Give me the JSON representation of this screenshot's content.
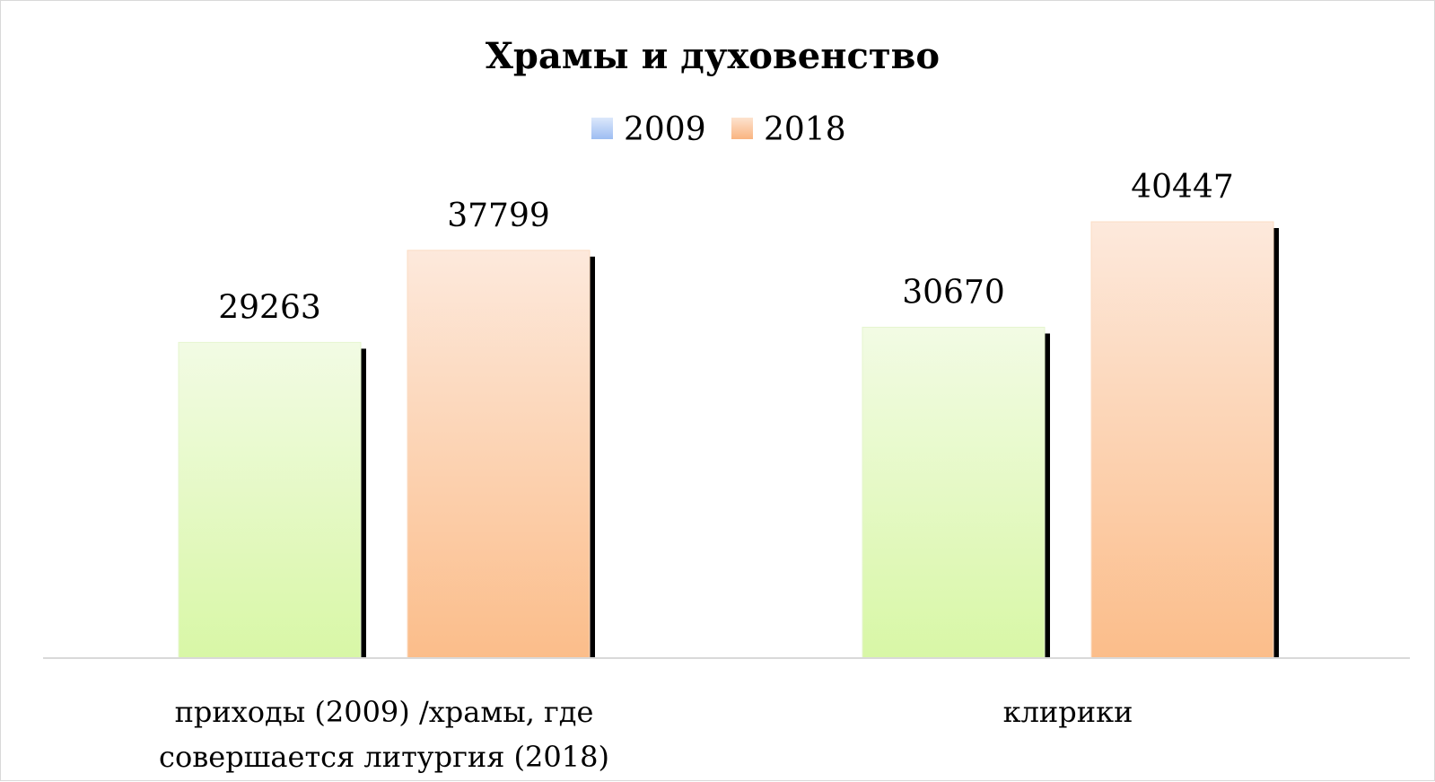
{
  "chart_data": {
    "type": "bar",
    "title": "Храмы и духовенство",
    "categories": [
      [
        "приходы (2009) /храмы, где",
        "совершается литургия (2018)"
      ],
      [
        "клирики"
      ]
    ],
    "series": [
      {
        "name": "2009",
        "values": [
          29263,
          30670
        ],
        "color_top": "#f2fbe4",
        "color_bottom": "#d8f7a6",
        "legend_color_top": "#dce8fb",
        "legend_color_bottom": "#9dbdf2"
      },
      {
        "name": "2018",
        "values": [
          37799,
          40447
        ],
        "color_top": "#fde9dc",
        "color_bottom": "#fbbd8a",
        "legend_color_top": "#fde3cf",
        "legend_color_bottom": "#f9b480"
      }
    ],
    "ylim": [
      0,
      40447
    ],
    "legend": "top",
    "grid": false,
    "xlabel": "",
    "ylabel": ""
  }
}
